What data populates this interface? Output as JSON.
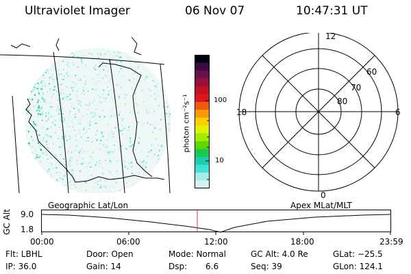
{
  "header": {
    "instrument": "Ultraviolet Imager",
    "date": "06 Nov 07",
    "time": "10:47:31 UT"
  },
  "colorbar": {
    "unit_label": "photon cm⁻²s⁻¹",
    "ticks": [
      "100",
      "10"
    ],
    "colors": [
      "#000010",
      "#3a0a40",
      "#6a1048",
      "#98103a",
      "#c21025",
      "#e0161a",
      "#f05a10",
      "#f89a08",
      "#fcd000",
      "#e0f000",
      "#a0ec00",
      "#5ad800",
      "#18c850",
      "#18d0b0",
      "#40e0d8",
      "#a6ece8",
      "#d8f2f0"
    ]
  },
  "polar_plot": {
    "mlt_labels": [
      "12",
      "18",
      "6",
      "0"
    ],
    "mlat_labels": [
      "60",
      "70",
      "80"
    ]
  },
  "timeline": {
    "left_title": "Geographic Lat/Lon",
    "right_title": "Apex MLat/MLT",
    "y_axis_label": "GC Alt",
    "y_ticks": [
      "9.0",
      "1.8"
    ],
    "x_ticks": [
      "00:00",
      "06:00",
      "12:00",
      "18:00",
      "23:59"
    ],
    "current_time_color": "#e03030"
  },
  "status": {
    "row1": {
      "flt": "Flt: LBHL",
      "door": "Door: Open",
      "mode": "Mode: Normal",
      "gc_alt": "GC Alt: 4.0 Re",
      "glat": "GLat: −25.5"
    },
    "row2": {
      "ip": "IP: 36.0",
      "gain": "Gain: 14",
      "dsp_label": "Dsp:",
      "dsp_value": "6.6",
      "seq": "Seq: 39",
      "glon": "GLon: 124.1"
    }
  }
}
